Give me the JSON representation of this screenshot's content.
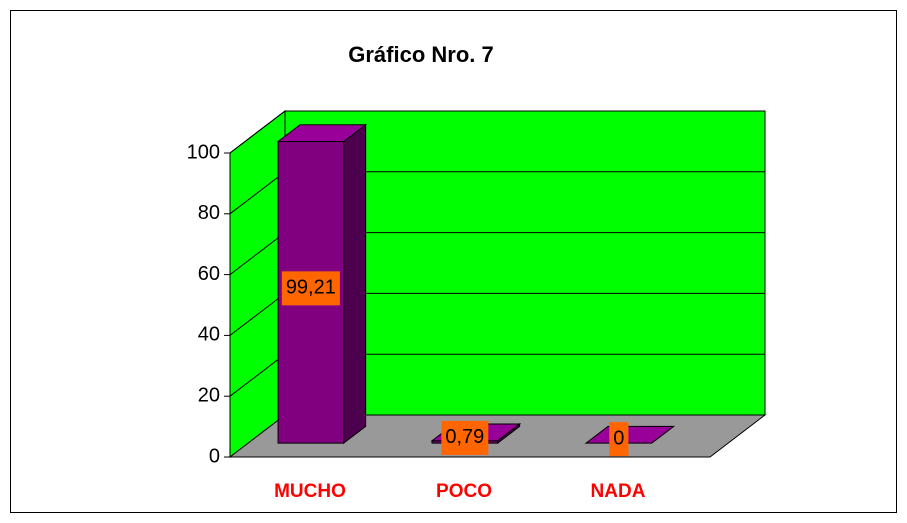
{
  "chart_data": {
    "type": "bar3d",
    "title": "Gráfico Nro. 7",
    "categories": [
      "MUCHO",
      "POCO",
      "NADA"
    ],
    "values": [
      99.21,
      0.79,
      0
    ],
    "value_labels": [
      "99,21",
      "0,79",
      "0"
    ],
    "color": "#800080",
    "wall_color": "#00ff00",
    "floor_color": "#999999",
    "label_color": "#ff6600",
    "category_color": "#ff0000",
    "ylim": [
      0,
      100
    ],
    "yticks": [
      0,
      20,
      40,
      60,
      80,
      100
    ],
    "grid": true
  }
}
